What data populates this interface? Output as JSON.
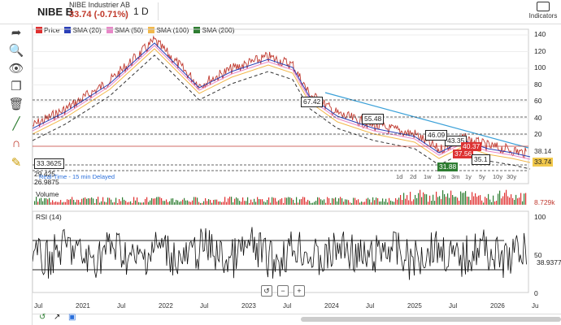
{
  "header": {
    "ticker": "NIBE B",
    "company": "NIBE Industrier AB",
    "price_change": "33.74 (-0.71%)",
    "interval": "1 D",
    "indicators_label": "Indicators"
  },
  "legend": [
    {
      "label": "Price",
      "color": "#e03030"
    },
    {
      "label": "SMA (20)",
      "color": "#2a3fb8"
    },
    {
      "label": "SMA (50)",
      "color": "#e887c8"
    },
    {
      "label": "SMA (100)",
      "color": "#f2b84b"
    },
    {
      "label": "SMA (200)",
      "color": "#2e7d32"
    }
  ],
  "price_axis": [
    "140",
    "120",
    "100",
    "80",
    "60",
    "40",
    "20"
  ],
  "price_tags": {
    "last_sma": "38.14",
    "last_price": "33.74"
  },
  "annotations": [
    "67.42",
    "55.48",
    "43.35",
    "40.37",
    "37.56",
    "35.1",
    "31.88",
    "33.3625",
    "29.425",
    "26.9875",
    "46.09"
  ],
  "delay_text": "Real-Time - 15 min Delayed",
  "periods": [
    "1d",
    "2d",
    "1w",
    "1m",
    "3m",
    "1y",
    "5y",
    "10y",
    "30y"
  ],
  "volume": {
    "label": "Volume",
    "value": "8.729k"
  },
  "rsi": {
    "label": "RSI (14)",
    "value": "38.9377",
    "axis": [
      "100",
      "50",
      "0"
    ]
  },
  "x_axis": [
    "Jul",
    "2021",
    "Jul",
    "2022",
    "Jul",
    "2023",
    "Jul",
    "2024",
    "Jul",
    "2025",
    "Jul",
    "2026",
    "Ju"
  ],
  "colors": {
    "price": "#222",
    "up": "#2e7d32",
    "down": "#e03030"
  }
}
